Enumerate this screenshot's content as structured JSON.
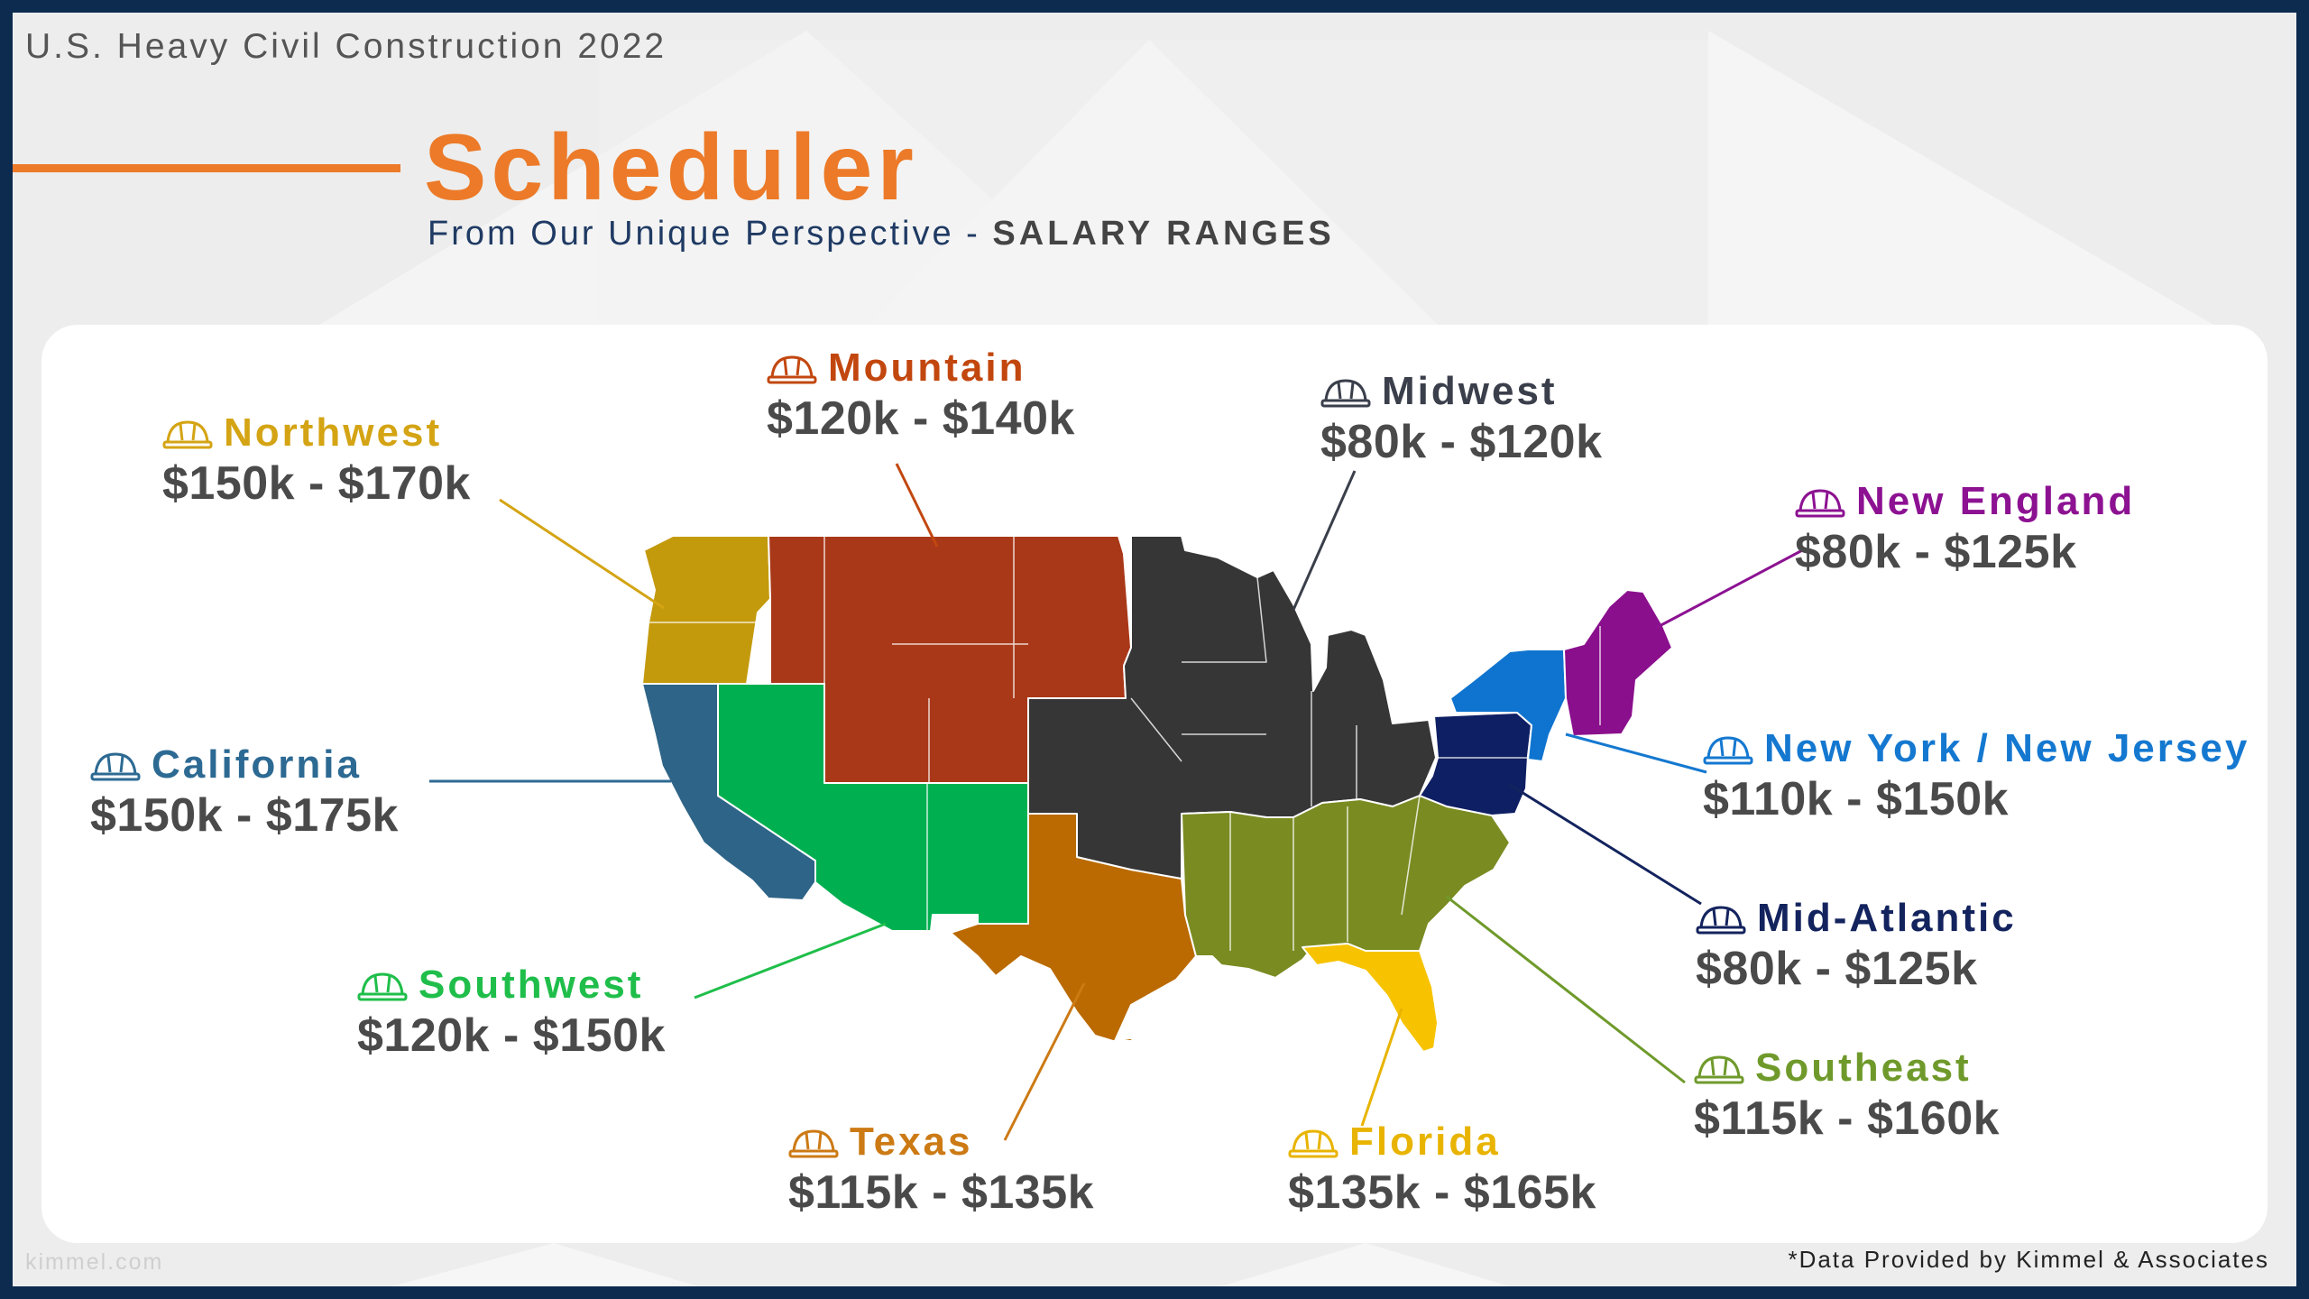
{
  "header": {
    "supertitle": "U.S. Heavy Civil Construction 2022",
    "title": "Scheduler",
    "subtitle_lead": "From Our Unique Perspective - ",
    "subtitle_emphasis": "SALARY RANGES"
  },
  "regions": {
    "northwest": {
      "name": "Northwest",
      "salary": "$150k - $170k",
      "color": "#c49a0d",
      "label_color": "#d4a414"
    },
    "mountain": {
      "name": "Mountain",
      "salary": "$120k - $140k",
      "color": "#a93818",
      "label_color": "#c2470f"
    },
    "midwest": {
      "name": "Midwest",
      "salary": "$80k - $120k",
      "color": "#363636",
      "label_color": "#3a3f4b"
    },
    "new_england": {
      "name": "New England",
      "salary": "$80k - $125k",
      "color": "#8a0f8c",
      "label_color": "#8c1292"
    },
    "california": {
      "name": "California",
      "salary": "$150k - $175k",
      "color": "#2e6487",
      "label_color": "#2d6a93"
    },
    "ny_nj": {
      "name": "New York / New Jersey",
      "salary": "$110k - $150k",
      "color": "#0f74cf",
      "label_color": "#1578d0"
    },
    "mid_atlantic": {
      "name": "Mid-Atlantic",
      "salary": "$80k - $125k",
      "color": "#0f1f63",
      "label_color": "#13235e"
    },
    "southwest": {
      "name": "Southwest",
      "salary": "$120k - $150k",
      "color": "#00b050",
      "label_color": "#1fbe4a"
    },
    "texas": {
      "name": "Texas",
      "salary": "$115k - $135k",
      "color": "#ba6a00",
      "label_color": "#cc7a14"
    },
    "florida": {
      "name": "Florida",
      "salary": "$135k - $165k",
      "color": "#f7c300",
      "label_color": "#e8b400"
    },
    "southeast": {
      "name": "Southeast",
      "salary": "$115k - $160k",
      "color": "#7a8b22",
      "label_color": "#6f9a2b"
    }
  },
  "footer": {
    "source": "*Data Provided by Kimmel & Associates",
    "site": "kimmel.com"
  },
  "colors": {
    "accent": "#ec7a28",
    "frame": "#0d2a4f",
    "card": "#ffffff"
  },
  "icons": {
    "region_label": "hard-hat-icon"
  }
}
